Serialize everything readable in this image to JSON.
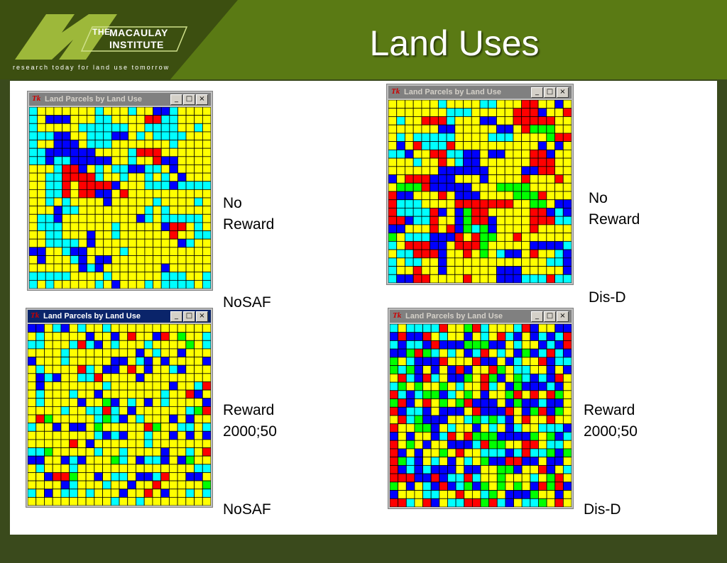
{
  "header": {
    "logo_the": "THE",
    "logo_line1": "MACAULAY",
    "logo_line2": "INSTITUTE",
    "tagline": "research today for land use tomorrow",
    "title": "Land Uses"
  },
  "window_title": "Land Parcels by Land Use",
  "window_icon": "Tk",
  "window_buttons": [
    "_",
    "□",
    "×"
  ],
  "colors": {
    "yellow": "#ffff00",
    "cyan": "#00ffff",
    "blue": "#0000ff",
    "red": "#ff0000",
    "green": "#00ff00",
    "title_active": "#0a246a",
    "title_inactive": "#808080"
  },
  "panels": [
    {
      "active": false,
      "reward": "No\nReward",
      "scenario": "NoSAF",
      "mix": {
        "yellow": 0.58,
        "cyan": 0.26,
        "blue": 0.12,
        "red": 0.03,
        "green": 0.01
      }
    },
    {
      "active": false,
      "reward": "No\nReward",
      "scenario": "Dis-D",
      "mix": {
        "yellow": 0.55,
        "cyan": 0.12,
        "blue": 0.17,
        "red": 0.13,
        "green": 0.03
      }
    },
    {
      "active": true,
      "reward": "Reward\n2000;50",
      "scenario": "NoSAF",
      "mix": {
        "yellow": 0.62,
        "cyan": 0.17,
        "blue": 0.12,
        "red": 0.05,
        "green": 0.04
      }
    },
    {
      "active": false,
      "reward": "Reward\n2000;50",
      "scenario": "Dis-D",
      "mix": {
        "yellow": 0.28,
        "cyan": 0.18,
        "blue": 0.24,
        "red": 0.17,
        "green": 0.13
      }
    }
  ]
}
